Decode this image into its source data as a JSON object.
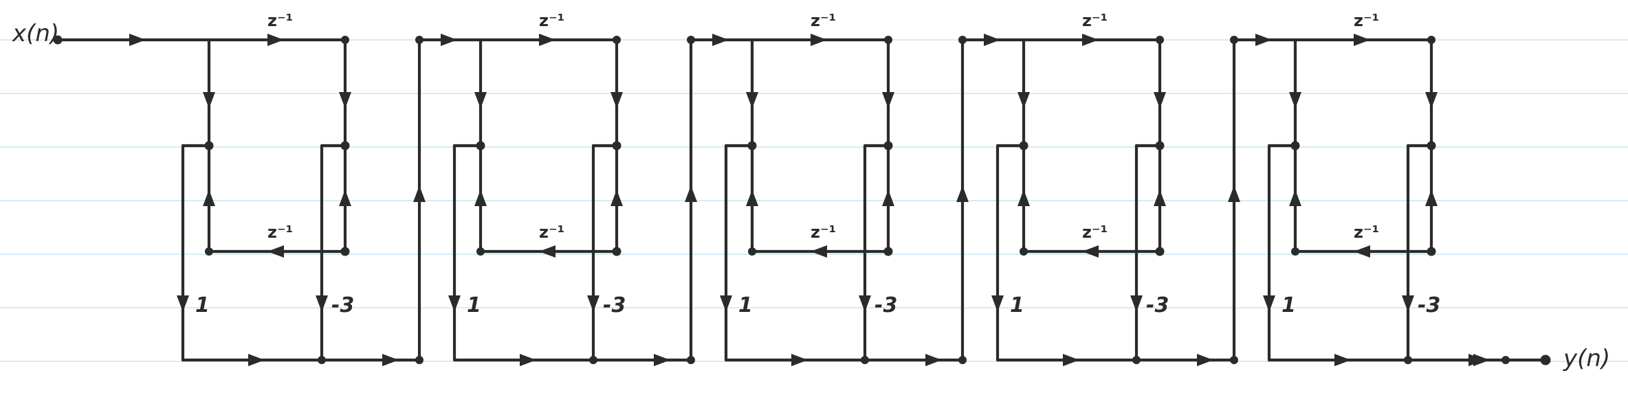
{
  "diagram": {
    "input_label": "x(n)",
    "output_label": "y(n)",
    "stages": [
      {
        "forward_delay": "z⁻¹",
        "feedback_delay": "z⁻¹",
        "left_gain": "1",
        "right_gain": "-3"
      },
      {
        "forward_delay": "z⁻¹",
        "feedback_delay": "z⁻¹",
        "left_gain": "1",
        "right_gain": "-3"
      },
      {
        "forward_delay": "z⁻¹",
        "feedback_delay": "z⁻¹",
        "left_gain": "1",
        "right_gain": "-3"
      },
      {
        "forward_delay": "z⁻¹",
        "feedback_delay": "z⁻¹",
        "left_gain": "1",
        "right_gain": "-3"
      },
      {
        "forward_delay": "z⁻¹",
        "feedback_delay": "z⁻¹",
        "left_gain": "1",
        "right_gain": "-3"
      }
    ],
    "colors": {
      "ink": "#2b2b2b",
      "ruled_line": "#c9e6f3",
      "paper": "#ffffff"
    }
  }
}
